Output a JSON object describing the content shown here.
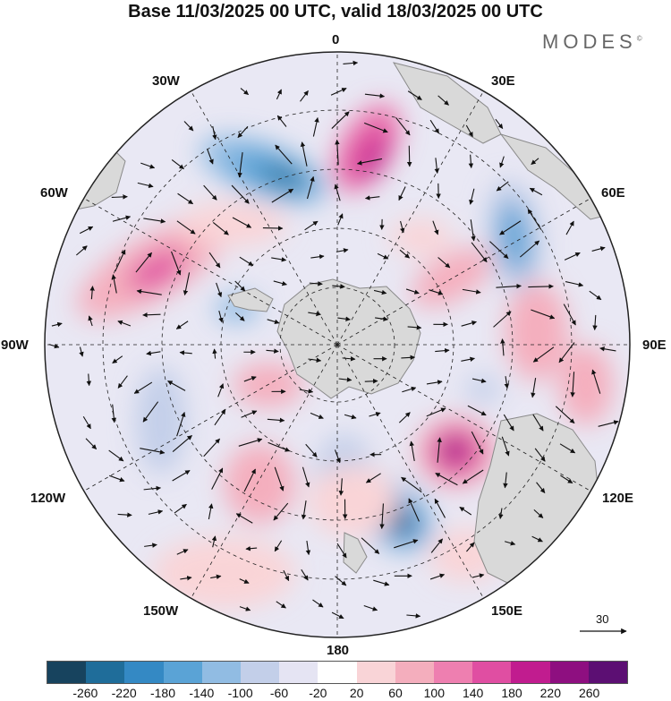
{
  "title": "Base 11/03/2025 00 UTC, valid 18/03/2025 00 UTC",
  "brand": "MODES",
  "brand_mark": "©",
  "map": {
    "projection": "south-polar-stereographic",
    "longitude_labels": {
      "top": "0",
      "top_right": "30E",
      "upper_right": "60E",
      "right": "90E",
      "lower_right": "120E",
      "bottom_right": "150E",
      "bottom": "180",
      "bottom_left": "150W",
      "lower_left": "120W",
      "left": "90W",
      "upper_left": "60W",
      "top_left": "30W"
    },
    "reference_vector": "30",
    "colors": {
      "land": "#d9d9d9",
      "coast": "#8a8a8a",
      "grid": "#222222"
    }
  },
  "colorbar": {
    "ticks": [
      "-260",
      "-220",
      "-180",
      "-140",
      "-100",
      "-60",
      "-20",
      "20",
      "60",
      "100",
      "140",
      "180",
      "220",
      "260"
    ],
    "colors": [
      "#17435e",
      "#1f6d9a",
      "#3489c4",
      "#5aa3d6",
      "#91bce3",
      "#c3cfe9",
      "#e5e4f3",
      "#ffffff",
      "#f9d4d7",
      "#f4aebd",
      "#ee7fb0",
      "#e04ea2",
      "#c11c8f",
      "#8e0f80",
      "#5c0f73"
    ]
  }
}
